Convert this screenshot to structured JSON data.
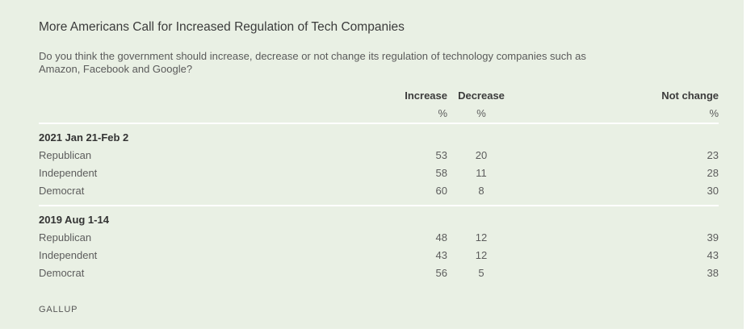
{
  "chart_data": {
    "type": "table",
    "title": "More Americans Call for Increased Regulation of Tech Companies",
    "subtitle": "Do you think the government should increase, decrease or not change its regulation of technology companies such as Amazon, Facebook and Google?",
    "columns": [
      "Increase",
      "Decrease",
      "Not change"
    ],
    "unit": "%",
    "groups": [
      {
        "label": "2021 Jan 21-Feb 2",
        "rows": [
          {
            "label": "Republican",
            "values": [
              53,
              20,
              23
            ]
          },
          {
            "label": "Independent",
            "values": [
              58,
              11,
              28
            ]
          },
          {
            "label": "Democrat",
            "values": [
              60,
              8,
              30
            ]
          }
        ]
      },
      {
        "label": "2019 Aug 1-14",
        "rows": [
          {
            "label": "Republican",
            "values": [
              48,
              12,
              39
            ]
          },
          {
            "label": "Independent",
            "values": [
              43,
              12,
              43
            ]
          },
          {
            "label": "Democrat",
            "values": [
              56,
              5,
              38
            ]
          }
        ]
      }
    ],
    "source": "GALLUP"
  }
}
